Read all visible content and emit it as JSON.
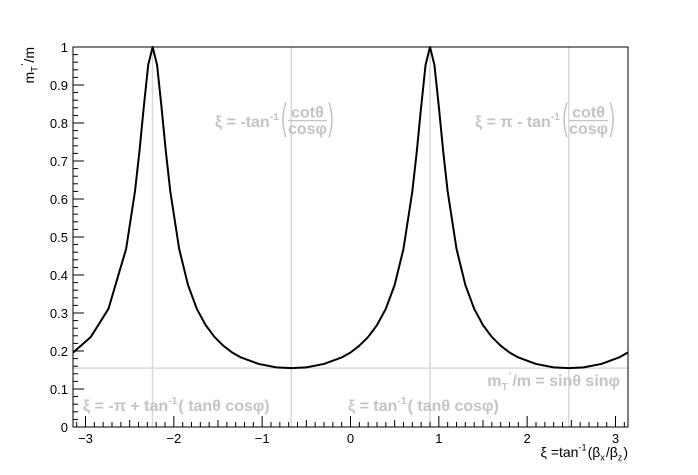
{
  "chart_data": {
    "type": "line",
    "x": [
      -3.14,
      -2.94,
      -2.74,
      -2.54,
      -2.44,
      -2.39,
      -2.34,
      -2.29,
      -2.24,
      -2.19,
      -2.14,
      -2.09,
      -2.04,
      -1.94,
      -1.84,
      -1.74,
      -1.64,
      -1.54,
      -1.44,
      -1.34,
      -1.24,
      -1.04,
      -0.84,
      -0.67,
      -0.5,
      -0.3,
      -0.1,
      0.0,
      0.1,
      0.2,
      0.3,
      0.4,
      0.5,
      0.6,
      0.7,
      0.75,
      0.8,
      0.85,
      0.9,
      0.95,
      1.0,
      1.05,
      1.1,
      1.2,
      1.3,
      1.4,
      1.5,
      1.6,
      1.7,
      1.8,
      1.9,
      2.1,
      2.3,
      2.47,
      2.64,
      2.84,
      3.04,
      3.14
    ],
    "series": [
      {
        "color": "#000000",
        "values": [
          0.196,
          0.237,
          0.311,
          0.469,
          0.62,
          0.724,
          0.843,
          0.953,
          1.0,
          0.953,
          0.843,
          0.724,
          0.62,
          0.469,
          0.374,
          0.311,
          0.268,
          0.237,
          0.214,
          0.196,
          0.183,
          0.166,
          0.157,
          0.155,
          0.157,
          0.166,
          0.183,
          0.196,
          0.214,
          0.237,
          0.268,
          0.311,
          0.374,
          0.469,
          0.62,
          0.724,
          0.843,
          0.953,
          1.0,
          0.953,
          0.843,
          0.724,
          0.62,
          0.469,
          0.374,
          0.311,
          0.268,
          0.237,
          0.214,
          0.196,
          0.183,
          0.166,
          0.157,
          0.155,
          0.157,
          0.166,
          0.183,
          0.196
        ]
      }
    ],
    "xlim": [
      -3.1416,
      3.1416
    ],
    "ylim": [
      0,
      1
    ],
    "xticks": [
      {
        "value": -3,
        "label": "−3"
      },
      {
        "value": -2,
        "label": "−2"
      },
      {
        "value": -1,
        "label": "−1"
      },
      0,
      1,
      2,
      3
    ],
    "yticks": [
      0,
      0.1,
      0.2,
      0.3,
      0.4,
      0.5,
      0.6,
      0.7,
      0.8,
      0.9,
      1
    ],
    "x_label": [
      {
        "text": "ξ =tan"
      },
      {
        "text": "-1",
        "style": "sup"
      },
      {
        "text": "(β"
      },
      {
        "text": "x",
        "style": "sub"
      },
      {
        "text": "/β"
      },
      {
        "text": "z",
        "style": "sub"
      },
      {
        "text": ")"
      }
    ],
    "y_label": [
      {
        "text": "m"
      },
      {
        "text": "T",
        "style": "sub"
      },
      {
        "text": "'",
        "style": "sup"
      },
      {
        "text": "/m"
      }
    ],
    "reference_lines": {
      "color": "#d9d9d9",
      "x": [
        -2.2416,
        -0.6708,
        0.9,
        2.4708
      ],
      "y": [
        0.155
      ]
    },
    "annotation_color": "#c4c4c4",
    "annotations": [
      [
        {
          "text": "ξ = -tan"
        },
        {
          "text": "-1",
          "style": "sup"
        },
        {
          "num": "cotθ",
          "den": "cosφ"
        }
      ],
      [
        {
          "text": "ξ = π - tan"
        },
        {
          "text": "-1",
          "style": "sup"
        },
        {
          "num": "cotθ",
          "den": "cosφ"
        }
      ],
      [
        {
          "text": "ξ = -π + tan"
        },
        {
          "text": "-1",
          "style": "sup"
        },
        {
          "text": "( tanθ cosφ)"
        }
      ],
      [
        {
          "text": "ξ = tan"
        },
        {
          "text": "-1",
          "style": "sup"
        },
        {
          "text": "( tanθ cosφ)"
        }
      ],
      [
        {
          "text": "m"
        },
        {
          "text": "T",
          "style": "sub"
        },
        {
          "text": "'",
          "style": "sup"
        },
        {
          "text": "/m = sinθ sinφ"
        }
      ]
    ]
  }
}
